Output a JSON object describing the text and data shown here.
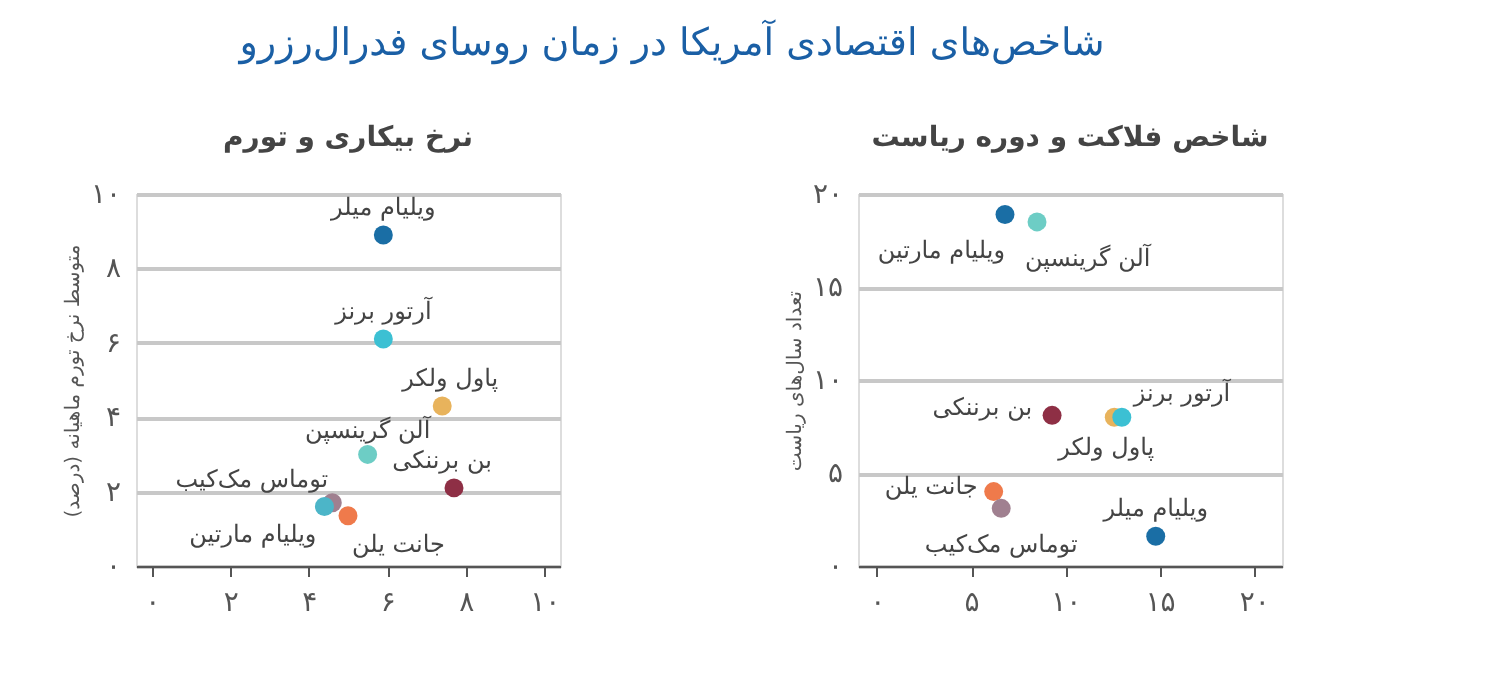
{
  "chart_data": [
    {
      "type": "scatter",
      "title": "شاخص فلاکت و دوره ریاست",
      "ylabel": "تعداد سال‌های ریاست",
      "annotations": [
        "شاخص‌های اقتصادی آمریکا در زمان روسای فدرال‌رزرو"
      ],
      "xlim": [
        -1,
        21.5
      ],
      "ylim": [
        0,
        20
      ],
      "xticks": [
        {
          "value": 0,
          "label": "۰"
        },
        {
          "value": 5,
          "label": "۵"
        },
        {
          "value": 10,
          "label": "۱۰"
        },
        {
          "value": 15,
          "label": "۱۵"
        },
        {
          "value": 20,
          "label": "۲۰"
        }
      ],
      "yticks": [
        {
          "value": 0,
          "label": "۰"
        },
        {
          "value": 5,
          "label": "۵"
        },
        {
          "value": 10,
          "label": "۱۰"
        },
        {
          "value": 15,
          "label": "۱۵"
        },
        {
          "value": 20,
          "label": "۲۰"
        }
      ],
      "grid": "y",
      "marker": "circle",
      "series": [
        {
          "name": "ویلیام مارتین",
          "color": "#1a6ea5",
          "x": [
            6.8
          ],
          "values": [
            18.9
          ]
        },
        {
          "name": "آلن گرینسپن",
          "color": "#6dcdc5",
          "x": [
            8.5
          ],
          "values": [
            18.5
          ]
        },
        {
          "name": "بن برننکی",
          "color": "#8e2f45",
          "x": [
            9.3
          ],
          "values": [
            8.1
          ]
        },
        {
          "name": "پاول ولکر",
          "color": "#e8b35c",
          "x": [
            12.6
          ],
          "values": [
            8.0
          ]
        },
        {
          "name": "آرتور برنز",
          "color": "#3cc0d3",
          "x": [
            13.0
          ],
          "values": [
            8.0
          ]
        },
        {
          "name": "جانت یلن",
          "color": "#ef7a4b",
          "x": [
            6.2
          ],
          "values": [
            4.0
          ]
        },
        {
          "name": "توماس مک‌کیب",
          "color": "#a08090",
          "x": [
            6.6
          ],
          "values": [
            3.1
          ]
        },
        {
          "name": "ویلیام میلر",
          "color": "#1a6ea5",
          "x": [
            14.8
          ],
          "values": [
            1.6
          ]
        }
      ]
    },
    {
      "type": "scatter",
      "title": "نرخ بیکاری و تورم",
      "ylabel": "متوسط نرخ تورم ماهیانه (درصد)",
      "xlim": [
        -0.4,
        10.4
      ],
      "ylim": [
        0,
        10
      ],
      "xticks": [
        {
          "value": 0,
          "label": "۰"
        },
        {
          "value": 2,
          "label": "۲"
        },
        {
          "value": 4,
          "label": "۴"
        },
        {
          "value": 6,
          "label": "۶"
        },
        {
          "value": 8,
          "label": "۸"
        },
        {
          "value": 10,
          "label": "۱۰"
        }
      ],
      "yticks": [
        {
          "value": 0,
          "label": "۰"
        },
        {
          "value": 2,
          "label": "۲"
        },
        {
          "value": 4,
          "label": "۴"
        },
        {
          "value": 6,
          "label": "۶"
        },
        {
          "value": 8,
          "label": "۸"
        },
        {
          "value": 10,
          "label": "۱۰"
        }
      ],
      "grid": "y",
      "marker": "circle",
      "series": [
        {
          "name": "ویلیام میلر",
          "color": "#1a6ea5",
          "x": [
            5.9
          ],
          "values": [
            8.9
          ]
        },
        {
          "name": "آرتور برنز",
          "color": "#3cc0d3",
          "x": [
            5.9
          ],
          "values": [
            6.1
          ]
        },
        {
          "name": "پاول ولکر",
          "color": "#e8b35c",
          "x": [
            7.4
          ],
          "values": [
            4.3
          ]
        },
        {
          "name": "آلن گرینسپن",
          "color": "#6dcdc5",
          "x": [
            5.5
          ],
          "values": [
            3.0
          ]
        },
        {
          "name": "بن برننکی",
          "color": "#8e2f45",
          "x": [
            7.7
          ],
          "values": [
            2.1
          ]
        },
        {
          "name": "توماس مک‌کیب",
          "color": "#a08090",
          "x": [
            4.6
          ],
          "values": [
            1.7
          ]
        },
        {
          "name": "ویلیام مارتین",
          "color": "#4cb5c8",
          "x": [
            4.4
          ],
          "values": [
            1.6
          ]
        },
        {
          "name": "جانت یلن",
          "color": "#ef7a4b",
          "x": [
            5.0
          ],
          "values": [
            1.35
          ]
        }
      ]
    }
  ]
}
